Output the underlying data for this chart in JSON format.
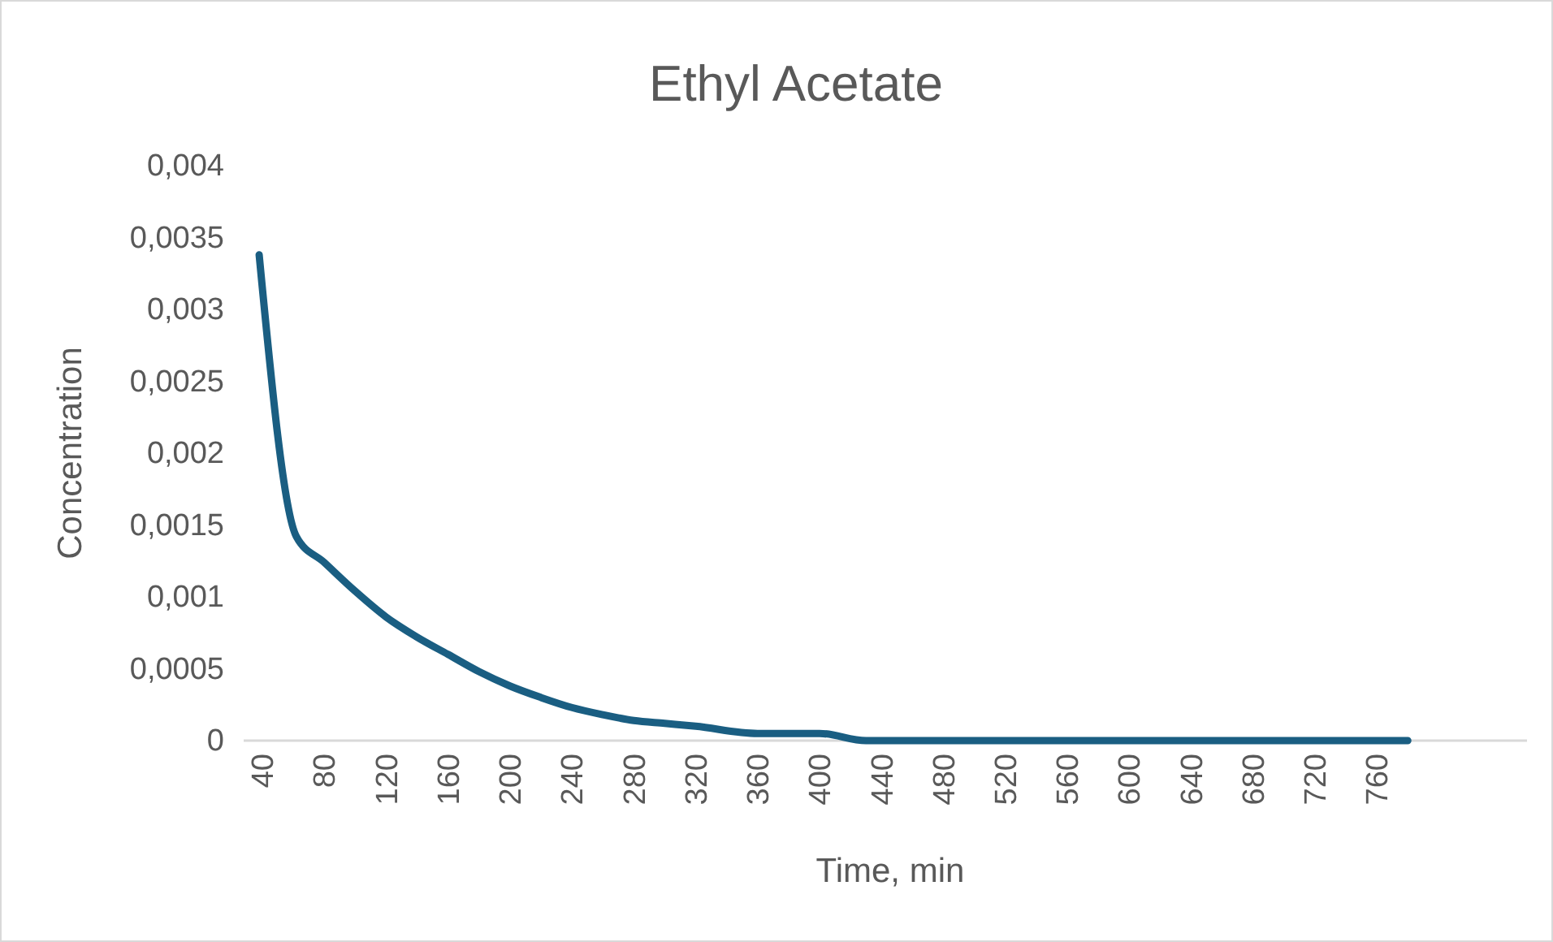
{
  "chart_data": {
    "type": "line",
    "title": "Ethyl Acetate",
    "xlabel": "Time, min",
    "ylabel": "Concentration",
    "x": [
      38,
      62,
      80,
      100,
      120,
      140,
      160,
      180,
      200,
      220,
      240,
      260,
      280,
      300,
      320,
      360,
      400,
      430,
      440,
      500,
      600,
      700,
      780
    ],
    "series": [
      {
        "color": "#1a5e82",
        "values": [
          0.00338,
          0.00142,
          0.00124,
          0.00104,
          0.00086,
          0.00072,
          0.0006,
          0.00048,
          0.00038,
          0.0003,
          0.00023,
          0.00018,
          0.00014,
          0.00012,
          0.0001,
          5e-05,
          5e-05,
          0,
          0,
          0,
          0,
          0,
          0
        ]
      }
    ],
    "xlim": [
      28,
      857
    ],
    "xticks": [
      40,
      80,
      120,
      160,
      200,
      240,
      280,
      320,
      360,
      400,
      440,
      480,
      520,
      560,
      600,
      640,
      680,
      720,
      760
    ],
    "ylim": [
      0,
      0.004
    ],
    "yticks": [
      {
        "value": 0,
        "label": "0"
      },
      {
        "value": 0.0005,
        "label": "0,0005"
      },
      {
        "value": 0.001,
        "label": "0,001"
      },
      {
        "value": 0.0015,
        "label": "0,0015"
      },
      {
        "value": 0.002,
        "label": "0,002"
      },
      {
        "value": 0.0025,
        "label": "0,0025"
      },
      {
        "value": 0.003,
        "label": "0,003"
      },
      {
        "value": 0.0035,
        "label": "0,0035"
      },
      {
        "value": 0.004,
        "label": "0,004"
      }
    ],
    "grid": false,
    "marker": "none",
    "line_style": "solid"
  }
}
